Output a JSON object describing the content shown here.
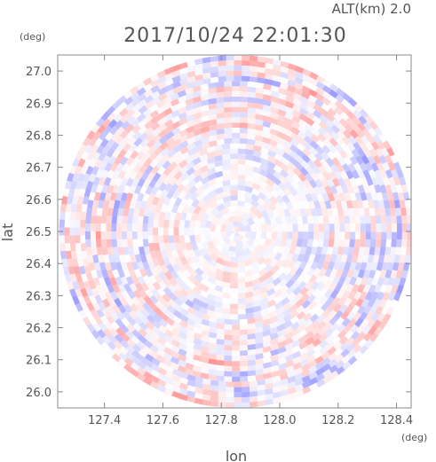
{
  "chart_data": {
    "type": "heatmap",
    "title": "2017/10/24 22:01:30",
    "altitude_label": "ALT(km) 2.0",
    "xlabel": "lon",
    "ylabel": "lat",
    "x_unit": "(deg)",
    "y_unit": "(deg)",
    "xlim": [
      127.24,
      128.45
    ],
    "ylim": [
      25.95,
      27.05
    ],
    "x_ticks": [
      "127.4",
      "127.6",
      "127.8",
      "128.0",
      "128.2",
      "128.4"
    ],
    "y_ticks": [
      "26.0",
      "26.1",
      "26.2",
      "26.3",
      "26.4",
      "26.5",
      "26.6",
      "26.7",
      "26.8",
      "26.9",
      "27.0"
    ],
    "center": {
      "lon": 127.85,
      "lat": 26.5
    },
    "radius_deg": 0.605,
    "colors": {
      "positive": "#ff9a9a",
      "negative": "#9a9aff",
      "axis": "#888888",
      "text": "#555555"
    }
  }
}
